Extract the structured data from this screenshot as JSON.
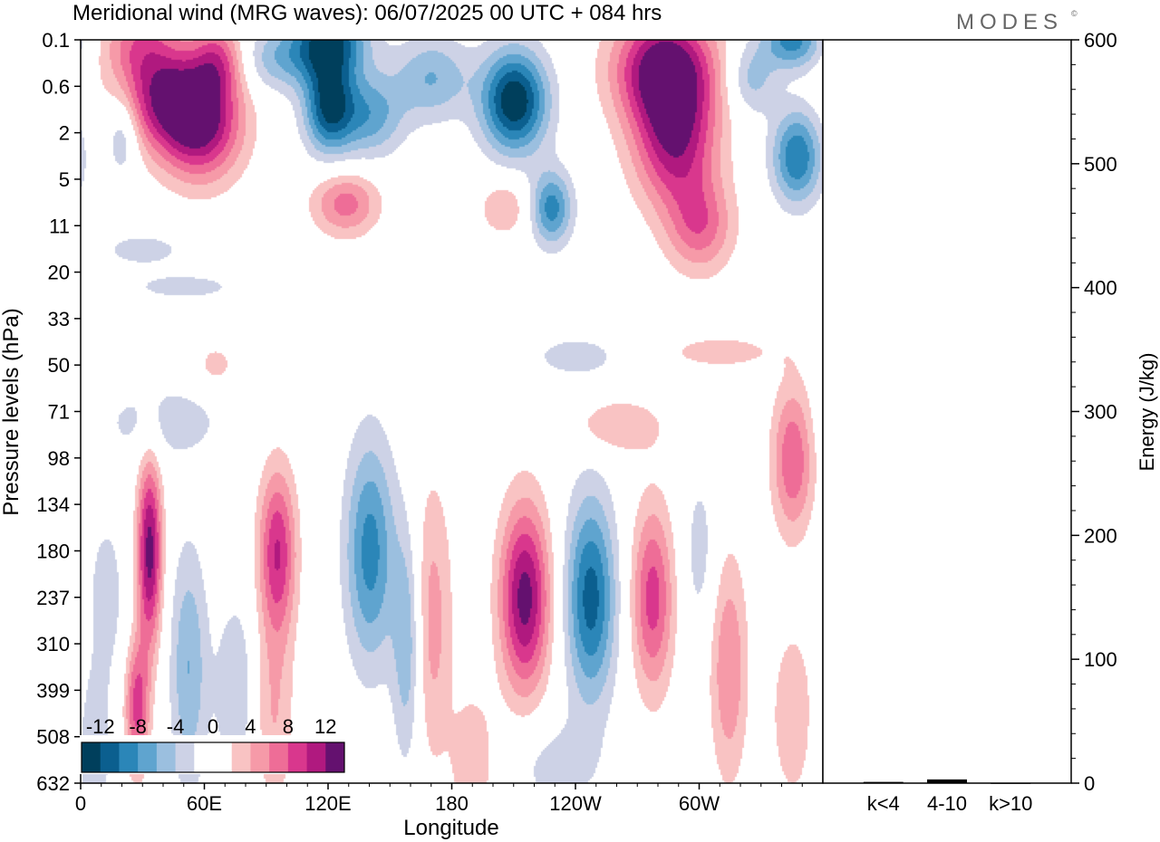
{
  "title": "Meridional wind (MRG waves):  06/07/2025  00 UTC  + 084 hrs",
  "logo": "MODES",
  "logo_mark": "©",
  "colors": {
    "neg": [
      "#003f5c",
      "#0b5f8f",
      "#2b86b8",
      "#5fa4cf",
      "#9bbfdf",
      "#cdd2e6"
    ],
    "pos": [
      "#f9c3c3",
      "#f69aa8",
      "#ee6d97",
      "#d9378d",
      "#b0197f",
      "#64116f"
    ]
  },
  "chart_data": [
    {
      "type": "heatmap",
      "xlabel": "Longitude",
      "ylabel": "Pressure levels (hPa)",
      "x_ticks": [
        "0",
        "60E",
        "120E",
        "180",
        "120W",
        "60W"
      ],
      "x_tick_values": [
        0,
        60,
        120,
        180,
        240,
        300
      ],
      "xlim": [
        0,
        360
      ],
      "y_ticks": [
        "0.1",
        "0.6",
        "2",
        "5",
        "11",
        "20",
        "33",
        "50",
        "71",
        "98",
        "134",
        "180",
        "237",
        "310",
        "399",
        "508",
        "632"
      ],
      "colorbar": {
        "labels": [
          "-12",
          "-8",
          "-4",
          "0",
          "4",
          "8",
          "12"
        ],
        "levels": [
          -14,
          -12,
          -10,
          -8,
          -6,
          -4,
          -2,
          2,
          4,
          6,
          8,
          10,
          12,
          14
        ]
      },
      "features": [
        {
          "lon": 20,
          "lev": 2.0,
          "v": -5,
          "wlon": 8,
          "wlev": 0.9
        },
        {
          "lon": 28,
          "lev": 0.0,
          "v": 6,
          "wlon": 18,
          "wlev": 0.9
        },
        {
          "lon": 40,
          "lev": 1.2,
          "v": 10,
          "wlon": 22,
          "wlev": 1.1
        },
        {
          "lon": 58,
          "lev": 1.8,
          "v": 12,
          "wlon": 20,
          "wlev": 1.2
        },
        {
          "lon": 66,
          "lev": 0.4,
          "v": 7,
          "wlon": 12,
          "wlev": 0.8
        },
        {
          "lon": 95,
          "lev": 0.4,
          "v": -5,
          "wlon": 18,
          "wlev": 0.7
        },
        {
          "lon": 120,
          "lev": 0.0,
          "v": -12,
          "wlon": 18,
          "wlev": 0.8
        },
        {
          "lon": 120,
          "lev": 1.4,
          "v": -12,
          "wlon": 12,
          "wlev": 1.0
        },
        {
          "lon": 140,
          "lev": 1.6,
          "v": -7,
          "wlon": 16,
          "wlev": 0.9
        },
        {
          "lon": 128,
          "lev": 3.5,
          "v": 7,
          "wlon": 16,
          "wlev": 0.7
        },
        {
          "lon": 170,
          "lev": 0.8,
          "v": -6,
          "wlon": 18,
          "wlev": 0.9
        },
        {
          "lon": 210,
          "lev": 1.3,
          "v": -14,
          "wlon": 16,
          "wlev": 1.1
        },
        {
          "lon": 228,
          "lev": 3.6,
          "v": -9,
          "wlon": 10,
          "wlev": 0.8
        },
        {
          "lon": 205,
          "lev": 3.6,
          "v": 4,
          "wlon": 12,
          "wlev": 0.6
        },
        {
          "lon": 283,
          "lev": 0.6,
          "v": 14,
          "wlon": 24,
          "wlev": 1.2
        },
        {
          "lon": 288,
          "lev": 2.2,
          "v": 11,
          "wlon": 20,
          "wlev": 1.4
        },
        {
          "lon": 300,
          "lev": 4.0,
          "v": 7,
          "wlon": 16,
          "wlev": 1.0
        },
        {
          "lon": 325,
          "lev": 0.8,
          "v": -5,
          "wlon": 12,
          "wlev": 0.8
        },
        {
          "lon": 347,
          "lev": 2.5,
          "v": -10,
          "wlon": 12,
          "wlev": 1.0
        },
        {
          "lon": 345,
          "lev": 0.0,
          "v": -9,
          "wlon": 14,
          "wlev": 0.6
        },
        {
          "lon": 30,
          "lev": 4.5,
          "v": -3,
          "wlon": 22,
          "wlev": 0.4
        },
        {
          "lon": 50,
          "lev": 5.3,
          "v": -3,
          "wlon": 28,
          "wlev": 0.3
        },
        {
          "lon": 240,
          "lev": 6.8,
          "v": -3,
          "wlon": 24,
          "wlev": 0.5
        },
        {
          "lon": 310,
          "lev": 6.7,
          "v": 3,
          "wlon": 30,
          "wlev": 0.4
        },
        {
          "lon": 65,
          "lev": 7.0,
          "v": 3,
          "wlon": 10,
          "wlev": 0.5
        },
        {
          "lon": 40,
          "lev": 8.2,
          "v": -3,
          "wlon": 34,
          "wlev": 0.9
        },
        {
          "lon": 260,
          "lev": 8.3,
          "v": 4,
          "wlon": 22,
          "wlev": 0.6
        },
        {
          "lon": 33,
          "lev": 11.0,
          "v": 13,
          "wlon": 6,
          "wlev": 2.0
        },
        {
          "lon": 95,
          "lev": 11.0,
          "v": 10,
          "wlon": 9,
          "wlev": 1.8
        },
        {
          "lon": 140,
          "lev": 11.0,
          "v": -9,
          "wlon": 12,
          "wlev": 2.4
        },
        {
          "lon": 158,
          "lev": 13.0,
          "v": -6,
          "wlon": 7,
          "wlev": 2.5
        },
        {
          "lon": 170,
          "lev": 12.5,
          "v": 5,
          "wlon": 10,
          "wlev": 3.0
        },
        {
          "lon": 215,
          "lev": 12.0,
          "v": 13,
          "wlon": 12,
          "wlev": 2.0
        },
        {
          "lon": 247,
          "lev": 12.0,
          "v": -11,
          "wlon": 12,
          "wlev": 2.2
        },
        {
          "lon": 277,
          "lev": 12.0,
          "v": 9,
          "wlon": 10,
          "wlev": 2.0
        },
        {
          "lon": 300,
          "lev": 11.0,
          "v": -3,
          "wlon": 8,
          "wlev": 1.8
        },
        {
          "lon": 314,
          "lev": 13.5,
          "v": 6,
          "wlon": 9,
          "wlev": 2.4
        },
        {
          "lon": 345,
          "lev": 9.0,
          "v": 8,
          "wlon": 10,
          "wlev": 1.6
        },
        {
          "lon": 27,
          "lev": 14.3,
          "v": 9,
          "wlon": 6,
          "wlev": 1.4
        },
        {
          "lon": 52,
          "lev": 13.5,
          "v": -6,
          "wlon": 9,
          "wlev": 2.6
        },
        {
          "lon": 75,
          "lev": 14.0,
          "v": -4,
          "wlon": 10,
          "wlev": 2.0
        },
        {
          "lon": 93,
          "lev": 14.5,
          "v": 4,
          "wlon": 10,
          "wlev": 2.2
        },
        {
          "lon": 12,
          "lev": 12.0,
          "v": -3,
          "wlon": 10,
          "wlev": 2.0
        },
        {
          "lon": 6,
          "lev": 15.3,
          "v": -4,
          "wlon": 8,
          "wlev": 1.6
        },
        {
          "lon": 230,
          "lev": 15.6,
          "v": -3,
          "wlon": 22,
          "wlev": 1.0
        },
        {
          "lon": 345,
          "lev": 14.5,
          "v": 4,
          "wlon": 10,
          "wlev": 1.8
        },
        {
          "lon": 190,
          "lev": 15.5,
          "v": 4,
          "wlon": 10,
          "wlev": 1.4
        }
      ]
    },
    {
      "type": "bar",
      "categories": [
        "k<4",
        "4-10",
        "k>10"
      ],
      "values": [
        1,
        3,
        0
      ],
      "ylabel": "Energy (J/kg)",
      "ylim": [
        0,
        600
      ],
      "y_ticks": [
        0,
        100,
        200,
        300,
        400,
        500,
        600
      ]
    }
  ]
}
